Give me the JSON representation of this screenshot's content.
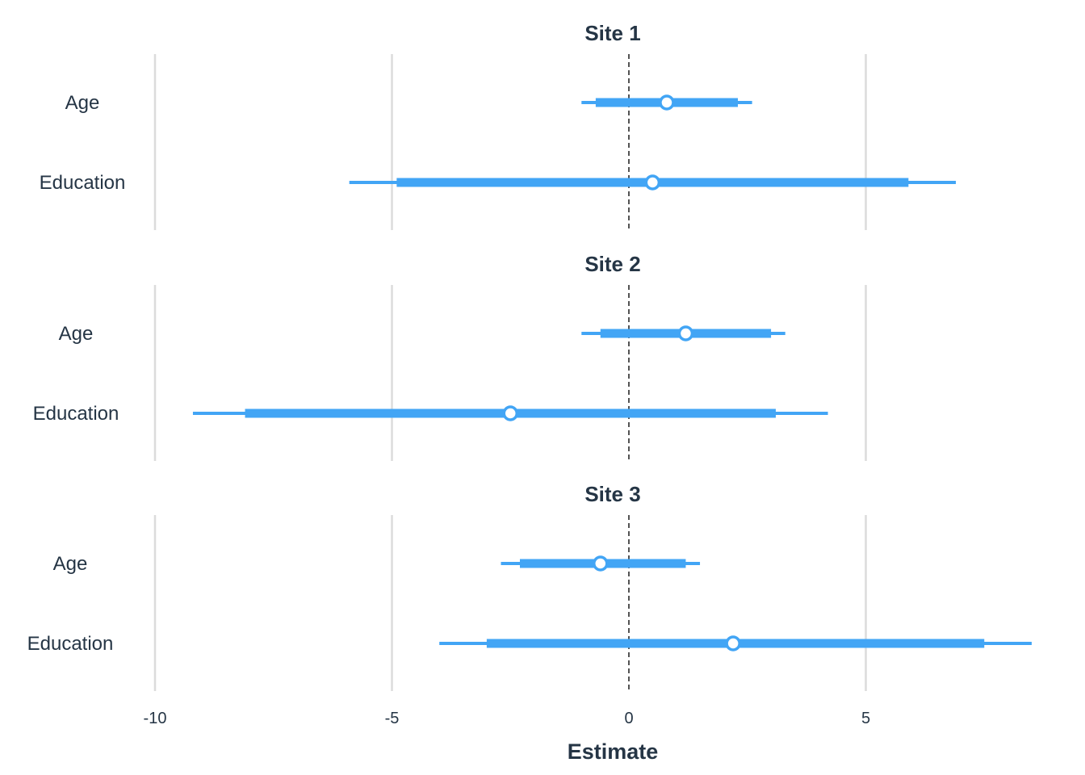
{
  "chart_data": {
    "type": "forest",
    "xlabel": "Estimate",
    "xlim": [
      -10,
      8.5
    ],
    "x_ticks": [
      -10,
      -5,
      0,
      5
    ],
    "x_tick_labels": [
      "-10",
      "-5",
      "0",
      "5"
    ],
    "reference_line": 0,
    "grid": "vertical major",
    "colors": {
      "interval": "#42a5f5",
      "point_fill": "#ffffff",
      "gridline": "#dcdcdc",
      "reference": "#1a1a1a",
      "text": "#253545"
    },
    "facets": [
      {
        "title": "Site 1",
        "rows": [
          {
            "label": "Age",
            "estimate": 0.8,
            "inner": [
              -0.7,
              2.3
            ],
            "outer": [
              -1.0,
              2.6
            ]
          },
          {
            "label": "Education",
            "estimate": 0.5,
            "inner": [
              -4.9,
              5.9
            ],
            "outer": [
              -5.9,
              6.9
            ]
          }
        ]
      },
      {
        "title": "Site 2",
        "rows": [
          {
            "label": "Age",
            "estimate": 1.2,
            "inner": [
              -0.6,
              3.0
            ],
            "outer": [
              -1.0,
              3.3
            ]
          },
          {
            "label": "Education",
            "estimate": -2.5,
            "inner": [
              -8.1,
              3.1
            ],
            "outer": [
              -9.2,
              4.2
            ]
          }
        ]
      },
      {
        "title": "Site 3",
        "rows": [
          {
            "label": "Age",
            "estimate": -0.6,
            "inner": [
              -2.3,
              1.2
            ],
            "outer": [
              -2.7,
              1.5
            ]
          },
          {
            "label": "Education",
            "estimate": 2.2,
            "inner": [
              -3.0,
              7.5
            ],
            "outer": [
              -4.0,
              8.5
            ]
          }
        ]
      }
    ]
  }
}
